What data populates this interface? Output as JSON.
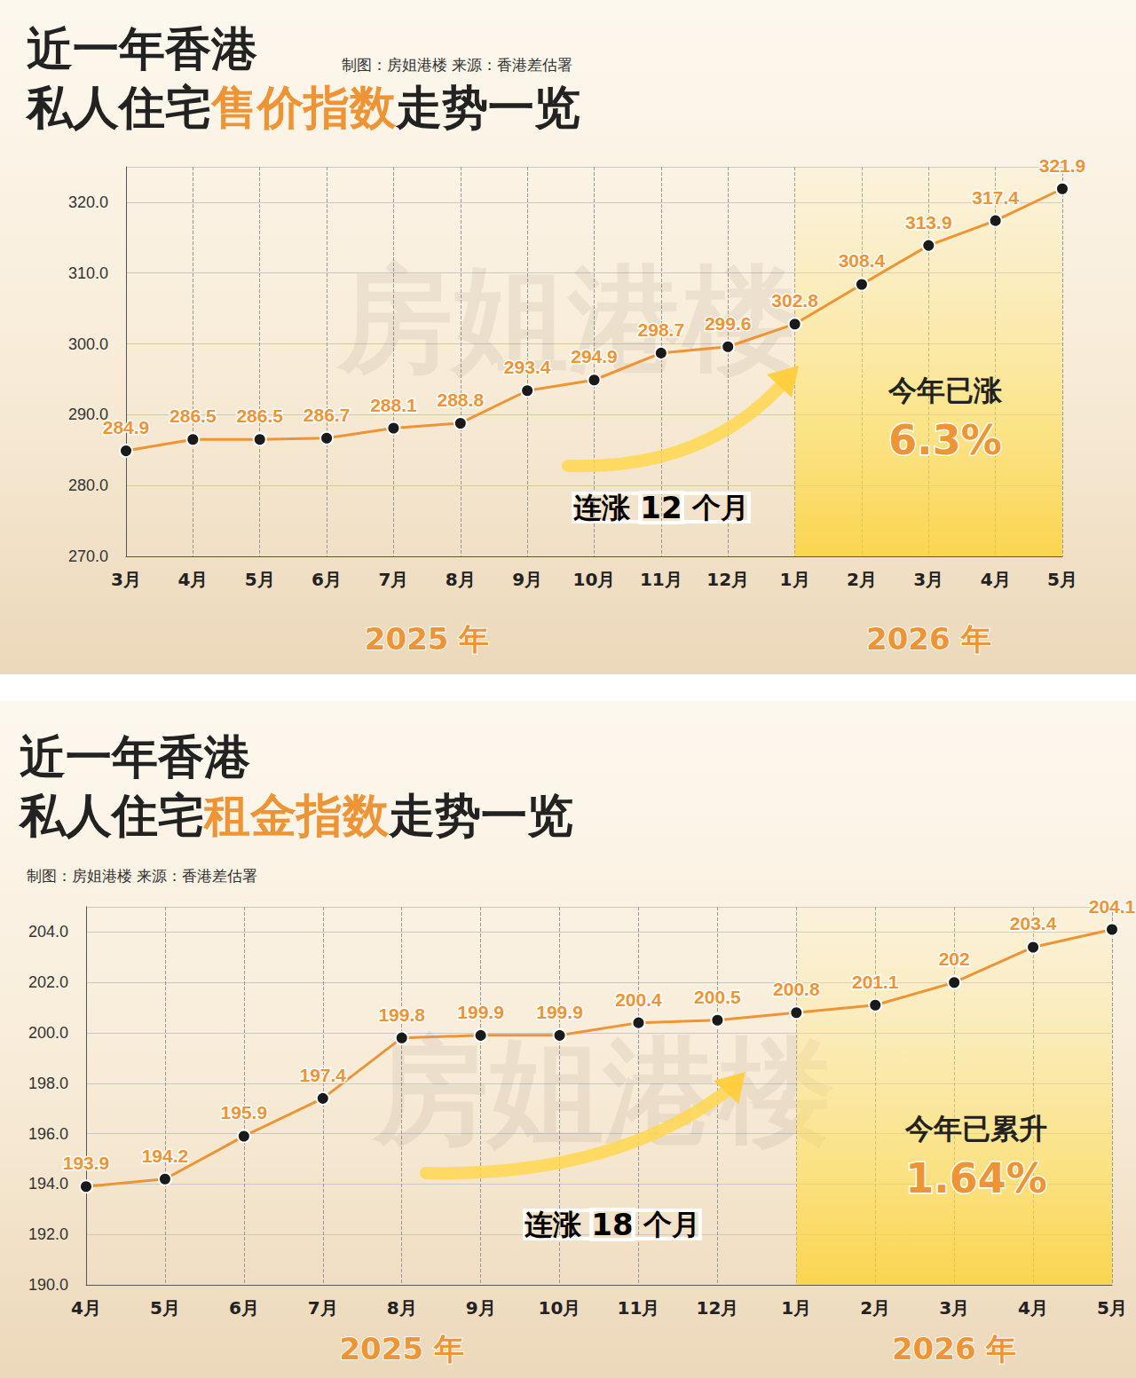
{
  "chart_data": [
    {
      "type": "line",
      "title": [
        "近一年香港",
        "私人住宅售价指数走势一览"
      ],
      "title_highlight": "售价指数",
      "credit": "制图：房姐港楼  来源：香港差估署",
      "watermark": "房姐港楼",
      "categories": [
        "3月",
        "4月",
        "5月",
        "6月",
        "7月",
        "8月",
        "9月",
        "10月",
        "11月",
        "12月",
        "1月",
        "2月",
        "3月",
        "4月",
        "5月"
      ],
      "x_groups": [
        {
          "label": "2025 年",
          "count": 10
        },
        {
          "label": "2026 年",
          "count": 5
        }
      ],
      "values": [
        284.9,
        286.5,
        286.5,
        286.7,
        288.1,
        288.8,
        293.4,
        294.9,
        298.7,
        299.6,
        302.8,
        308.4,
        313.9,
        317.4,
        321.9
      ],
      "color": "#ee9434",
      "marker": "circle",
      "data_labels": true,
      "grid": true,
      "ylim": [
        270,
        325
      ],
      "yticks": [
        {
          "value": 270,
          "label": "270.0"
        },
        {
          "value": 280,
          "label": "280.0"
        },
        {
          "value": 290,
          "label": "290.0"
        },
        {
          "value": 300,
          "label": "300.0"
        },
        {
          "value": 310,
          "label": "310.0"
        },
        {
          "value": 320,
          "label": "320.0"
        }
      ],
      "highlight_note": [
        "今年已涨",
        "6.3%"
      ],
      "streak_note": "连涨 12 个月"
    },
    {
      "type": "line",
      "title": [
        "近一年香港",
        "私人住宅租金指数走势一览"
      ],
      "title_highlight": "租金指数",
      "credit": "制图：房姐港楼  来源：香港差估署",
      "watermark": "房姐港楼",
      "categories": [
        "4月",
        "5月",
        "6月",
        "7月",
        "8月",
        "9月",
        "10月",
        "11月",
        "12月",
        "1月",
        "2月",
        "3月",
        "4月",
        "5月"
      ],
      "x_groups": [
        {
          "label": "2025 年",
          "count": 9
        },
        {
          "label": "2026 年",
          "count": 5
        }
      ],
      "values": [
        193.9,
        194.2,
        195.9,
        197.4,
        199.8,
        199.9,
        199.9,
        200.4,
        200.5,
        200.8,
        201.1,
        202,
        203.4,
        204.1
      ],
      "color": "#ee9434",
      "marker": "circle",
      "data_labels": true,
      "grid": true,
      "ylim": [
        190,
        205
      ],
      "yticks": [
        {
          "value": 190,
          "label": "190.0"
        },
        {
          "value": 192,
          "label": "192.0"
        },
        {
          "value": 194,
          "label": "194.0"
        },
        {
          "value": 196,
          "label": "196.0"
        },
        {
          "value": 198,
          "label": "198.0"
        },
        {
          "value": 200,
          "label": "200.0"
        },
        {
          "value": 202,
          "label": "202.0"
        },
        {
          "value": 204,
          "label": "204.0"
        }
      ],
      "highlight_note": [
        "今年已累升",
        "1.64%"
      ],
      "streak_note": "连涨 18 个月"
    }
  ]
}
